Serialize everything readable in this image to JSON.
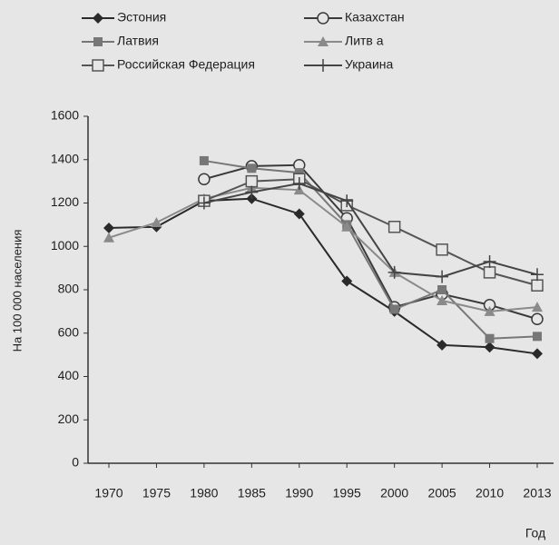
{
  "chart_data": {
    "type": "line",
    "x_label": "Год",
    "y_label": "На 100 000 населения",
    "categories": [
      "1970",
      "1975",
      "1980",
      "1985",
      "1990",
      "1995",
      "2000",
      "2005",
      "2010",
      "2013"
    ],
    "ylim": [
      0,
      1600
    ],
    "yticks": [
      0,
      200,
      400,
      600,
      800,
      1000,
      1200,
      1400,
      1600
    ],
    "grid": false,
    "series": [
      {
        "name": "Эстония",
        "color": "#2a2a2a",
        "marker": "diamond",
        "values": [
          1085,
          1090,
          1210,
          1220,
          1150,
          840,
          700,
          545,
          535,
          505
        ]
      },
      {
        "name": "Казахстан",
        "color": "#3a3a3a",
        "marker": "circle-open",
        "values": [
          null,
          null,
          1310,
          1370,
          1375,
          1130,
          720,
          780,
          730,
          665
        ]
      },
      {
        "name": "Латвия",
        "color": "#777777",
        "marker": "square",
        "values": [
          null,
          null,
          1395,
          1360,
          1340,
          1100,
          710,
          800,
          575,
          585
        ]
      },
      {
        "name": "Литв а",
        "color": "#8a8a8a",
        "marker": "triangle",
        "values": [
          1040,
          1110,
          1220,
          1270,
          1260,
          1090,
          880,
          750,
          700,
          720
        ]
      },
      {
        "name": "Российская Федерация",
        "color": "#555555",
        "marker": "square-open",
        "values": [
          null,
          null,
          1210,
          1300,
          1310,
          1190,
          1090,
          985,
          880,
          820
        ]
      },
      {
        "name": "Украина",
        "color": "#444444",
        "marker": "plus",
        "values": [
          null,
          null,
          1200,
          1250,
          1290,
          1210,
          880,
          860,
          930,
          870
        ]
      }
    ]
  }
}
